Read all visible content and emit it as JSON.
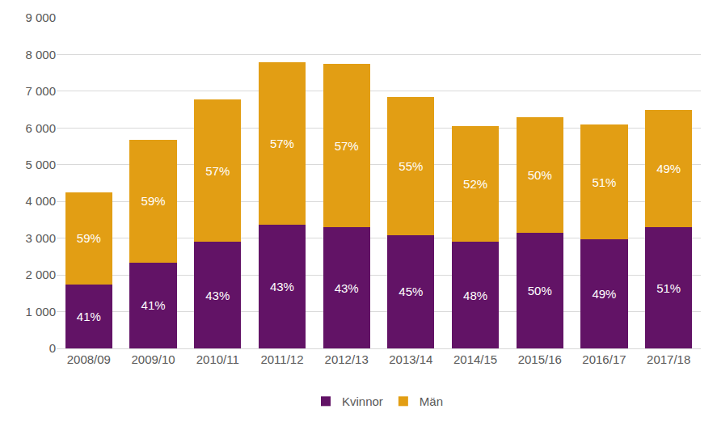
{
  "chart_data": {
    "type": "bar",
    "stacked": true,
    "data_labels": true,
    "grid": true,
    "legend": "bottom",
    "categories": [
      "2008/09",
      "2009/10",
      "2010/11",
      "2011/12",
      "2012/13",
      "2013/14",
      "2014/15",
      "2015/16",
      "2016/17",
      "2017/18"
    ],
    "series": [
      {
        "name": "Kvinnor",
        "color": "#621366",
        "values": [
          1740,
          2340,
          2900,
          3370,
          3290,
          3090,
          2900,
          3150,
          2960,
          3290
        ],
        "percent_labels": [
          "41%",
          "41%",
          "43%",
          "43%",
          "43%",
          "45%",
          "48%",
          "50%",
          "49%",
          "51%"
        ]
      },
      {
        "name": "Män",
        "color": "#E29E14",
        "values": [
          2510,
          3340,
          3880,
          4420,
          4450,
          3750,
          3160,
          3140,
          3130,
          3200
        ],
        "percent_labels": [
          "59%",
          "59%",
          "57%",
          "57%",
          "57%",
          "55%",
          "52%",
          "50%",
          "51%",
          "49%"
        ]
      }
    ],
    "ylim": [
      0,
      9000
    ],
    "yticks": [
      0,
      {
        "value": 1000,
        "label": "1 000"
      },
      {
        "value": 2000,
        "label": "2 000"
      },
      {
        "value": 3000,
        "label": "3 000"
      },
      {
        "value": 4000,
        "label": "4 000"
      },
      {
        "value": 5000,
        "label": "5 000"
      },
      {
        "value": 6000,
        "label": "6 000"
      },
      {
        "value": 7000,
        "label": "7 000"
      },
      {
        "value": 8000,
        "label": "8 000"
      },
      {
        "value": 9000,
        "label": "9 000"
      }
    ]
  }
}
